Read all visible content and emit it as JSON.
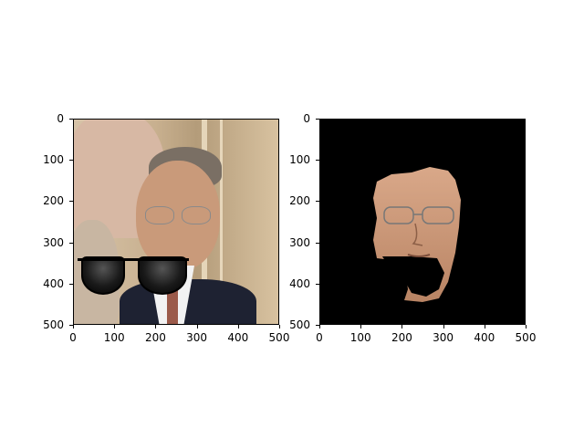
{
  "figures": [
    {
      "name": "left",
      "yticks": [
        "0",
        "100",
        "200",
        "300",
        "400",
        "500"
      ],
      "xticks": [
        "0",
        "100",
        "200",
        "300",
        "400",
        "500"
      ]
    },
    {
      "name": "right",
      "yticks": [
        "0",
        "100",
        "200",
        "300",
        "400",
        "500"
      ],
      "xticks": [
        "0",
        "100",
        "200",
        "300",
        "400",
        "500"
      ]
    }
  ],
  "colors": {
    "background": "#ffffff",
    "mask_background": "#000000",
    "skin": "#c99a7a",
    "suit": "#1e2232"
  }
}
